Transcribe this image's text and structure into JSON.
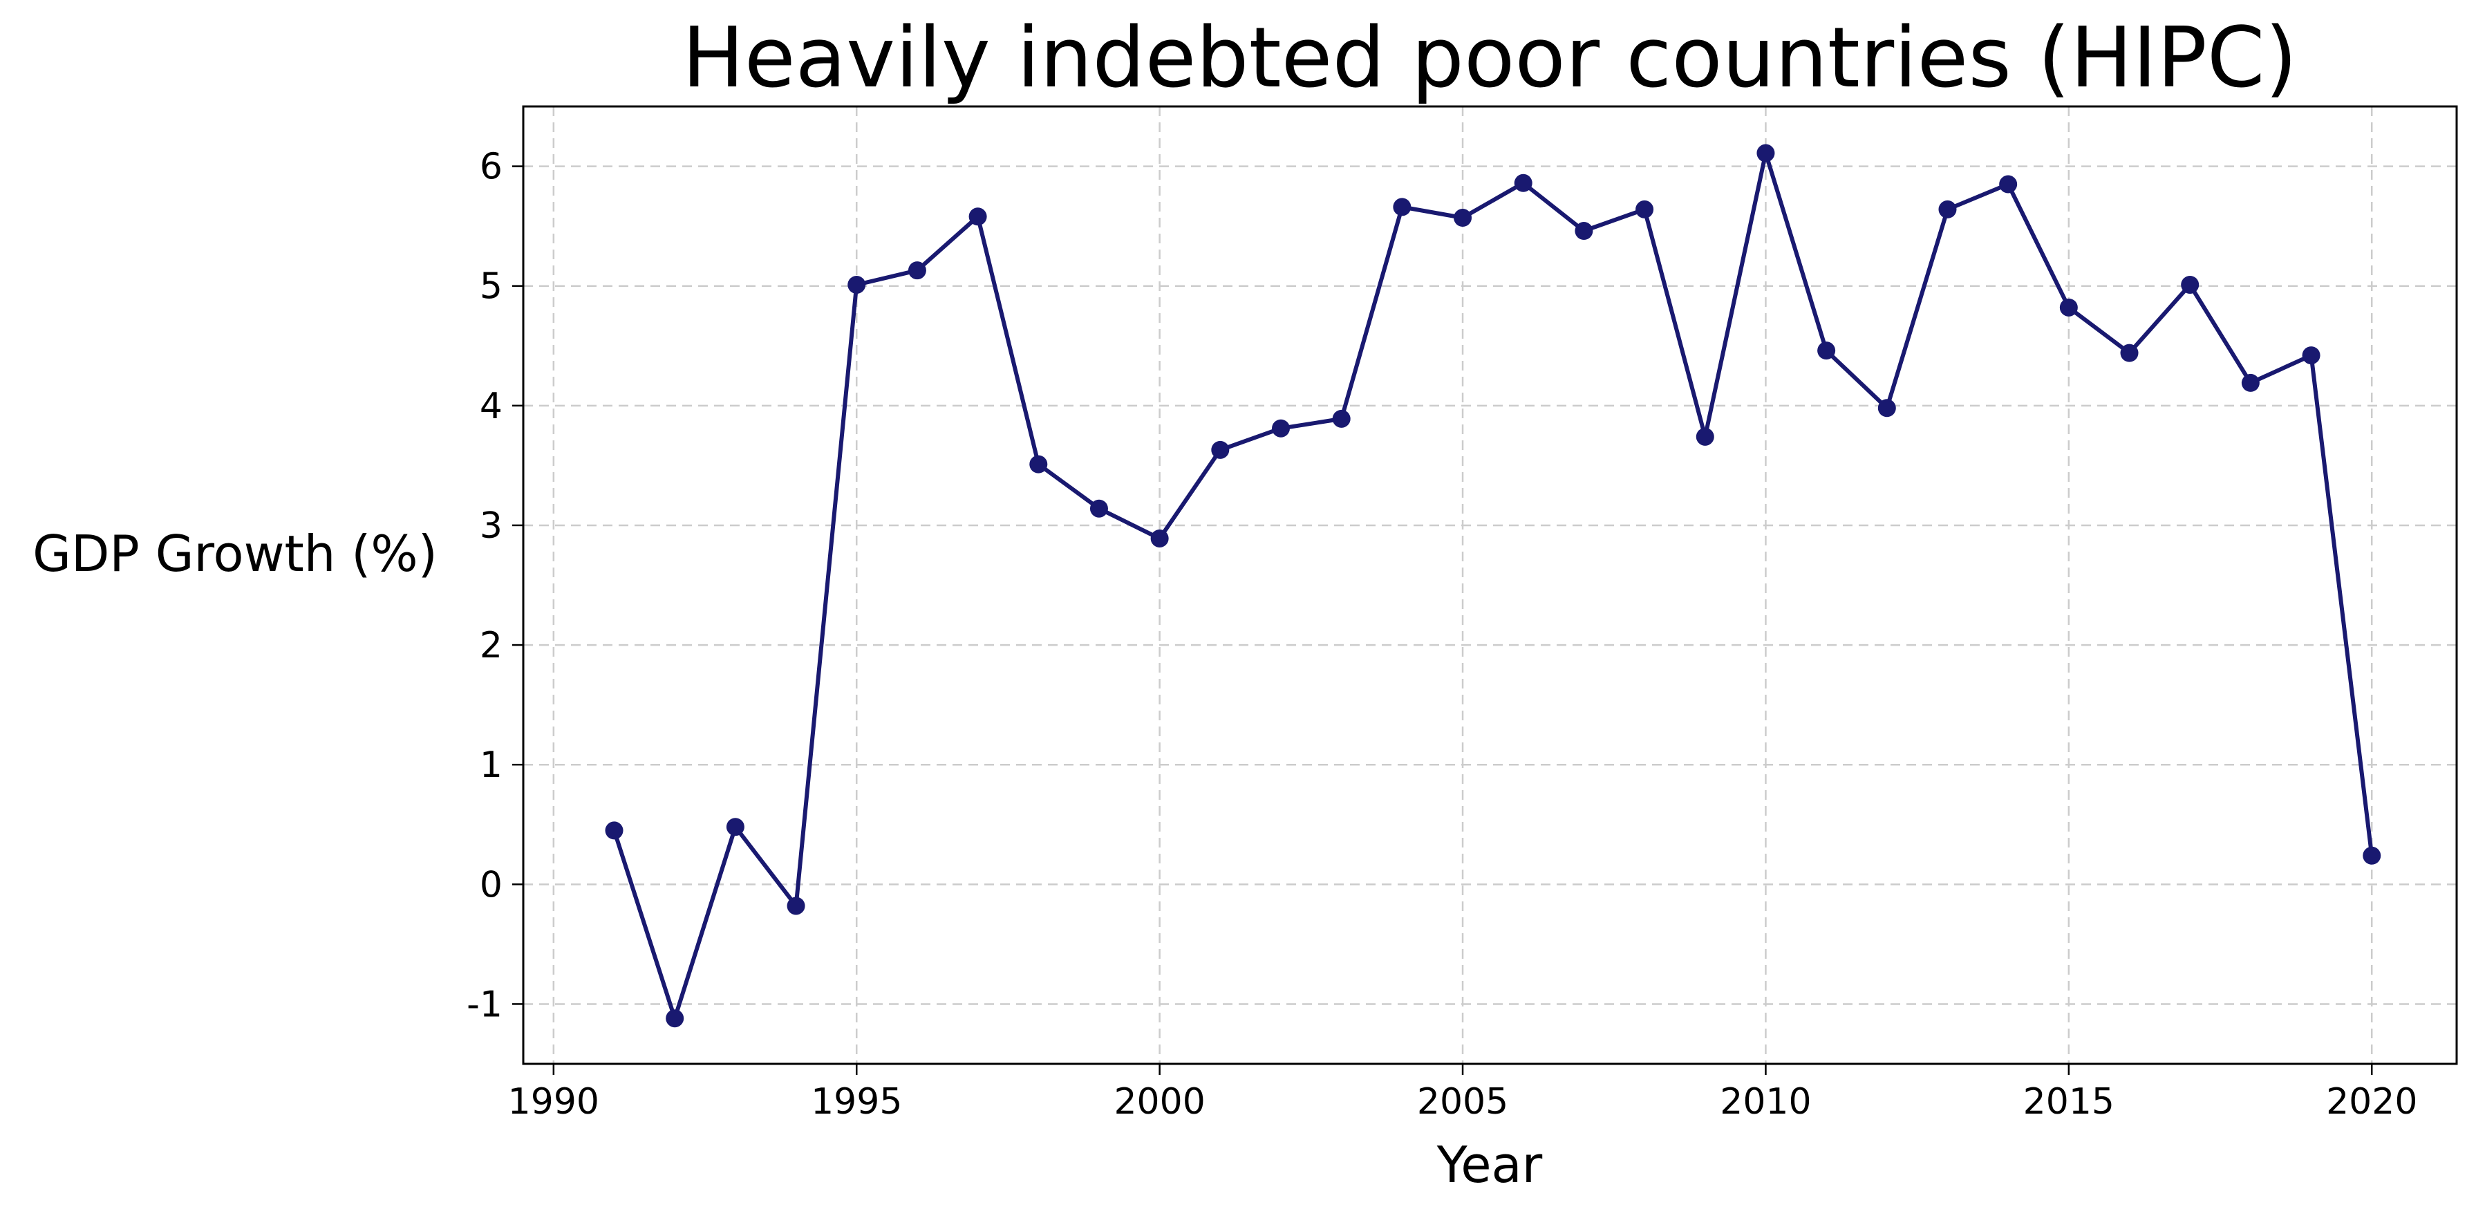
{
  "chart_data": {
    "type": "line",
    "title": "Heavily indebted poor countries (HIPC)",
    "xlabel": "Year",
    "ylabel": "GDP Growth (%)",
    "xlim": [
      1989.5,
      2021.4
    ],
    "ylim": [
      -1.5,
      6.5
    ],
    "xticks": [
      1990,
      1995,
      2000,
      2005,
      2010,
      2015,
      2020
    ],
    "yticks": [
      -1,
      0,
      1,
      2,
      3,
      4,
      5,
      6
    ],
    "grid": true,
    "line_color": "#191970",
    "series": [
      {
        "x": [
          1991,
          1992,
          1993,
          1994,
          1995,
          1996,
          1997,
          1998,
          1999,
          2000,
          2001,
          2002,
          2003,
          2004,
          2005,
          2006,
          2007,
          2008,
          2009,
          2010,
          2011,
          2012,
          2013,
          2014,
          2015,
          2016,
          2017,
          2018,
          2019,
          2020
        ],
        "y": [
          0.45,
          -1.12,
          0.48,
          -0.18,
          5.01,
          5.13,
          5.58,
          3.51,
          3.14,
          2.89,
          3.63,
          3.81,
          3.89,
          5.66,
          5.57,
          5.86,
          5.46,
          5.64,
          3.74,
          6.11,
          4.46,
          3.98,
          5.64,
          5.85,
          4.82,
          4.44,
          5.01,
          4.19,
          4.42,
          0.24
        ]
      }
    ]
  }
}
